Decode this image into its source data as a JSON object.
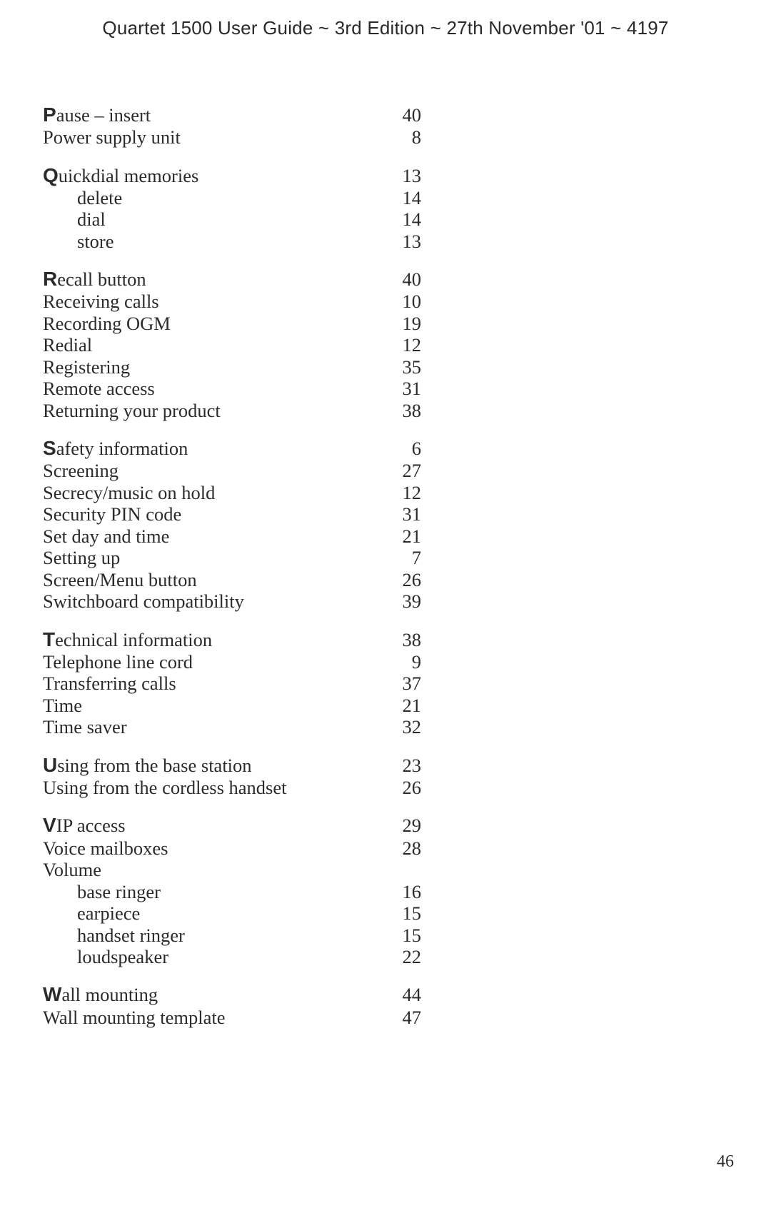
{
  "header": "Quartet 1500 User Guide ~ 3rd Edition ~ 27th November '01 ~ 4197",
  "footer_page": "46",
  "groups": [
    {
      "rows": [
        {
          "initial": "P",
          "rest": "ause – insert",
          "page": "40"
        },
        {
          "label": "Power supply unit",
          "page": "8"
        }
      ]
    },
    {
      "rows": [
        {
          "initial": "Q",
          "rest": "uickdial memories",
          "page": "13"
        },
        {
          "sub": true,
          "label": "delete",
          "page": "14"
        },
        {
          "sub": true,
          "label": "dial",
          "page": "14"
        },
        {
          "sub": true,
          "label": "store",
          "page": "13"
        }
      ]
    },
    {
      "rows": [
        {
          "initial": "R",
          "rest": "ecall button",
          "page": "40"
        },
        {
          "label": "Receiving calls",
          "page": "10"
        },
        {
          "label": "Recording OGM",
          "page": "19"
        },
        {
          "label": "Redial",
          "page": "12"
        },
        {
          "label": "Registering",
          "page": "35"
        },
        {
          "label": "Remote access",
          "page": "31"
        },
        {
          "label": "Returning your product",
          "page": "38"
        }
      ]
    },
    {
      "rows": [
        {
          "initial": "S",
          "rest": "afety information",
          "page": "6"
        },
        {
          "label": "Screening",
          "page": "27"
        },
        {
          "label": "Secrecy/music on hold",
          "page": "12"
        },
        {
          "label": "Security PIN code",
          "page": "31"
        },
        {
          "label": "Set day and time",
          "page": "21"
        },
        {
          "label": "Setting up",
          "page": "7"
        },
        {
          "label": "Screen/Menu button",
          "page": "26"
        },
        {
          "label": "Switchboard compatibility",
          "page": "39"
        }
      ]
    },
    {
      "rows": [
        {
          "initial": "T",
          "rest": "echnical information",
          "page": "38"
        },
        {
          "label": "Telephone line cord",
          "page": "9"
        },
        {
          "label": "Transferring calls",
          "page": "37"
        },
        {
          "label": "Time",
          "page": "21"
        },
        {
          "label": "Time saver",
          "page": "32"
        }
      ]
    },
    {
      "rows": [
        {
          "initial": "U",
          "rest": "sing from the base station",
          "page": "23"
        },
        {
          "label": "Using from the cordless handset",
          "page": "26"
        }
      ]
    },
    {
      "rows": [
        {
          "initial": "V",
          "rest": "IP access",
          "page": "29"
        },
        {
          "label": "Voice mailboxes",
          "page": "28"
        },
        {
          "label": "Volume",
          "page": ""
        },
        {
          "sub": true,
          "label": "base ringer",
          "page": "16"
        },
        {
          "sub": true,
          "label": "earpiece",
          "page": "15"
        },
        {
          "sub": true,
          "label": "handset ringer",
          "page": "15"
        },
        {
          "sub": true,
          "label": "loudspeaker",
          "page": "22"
        }
      ]
    },
    {
      "rows": [
        {
          "initial": "W",
          "rest": "all mounting",
          "page": "44"
        },
        {
          "label": "Wall mounting template",
          "page": "47"
        }
      ]
    }
  ]
}
